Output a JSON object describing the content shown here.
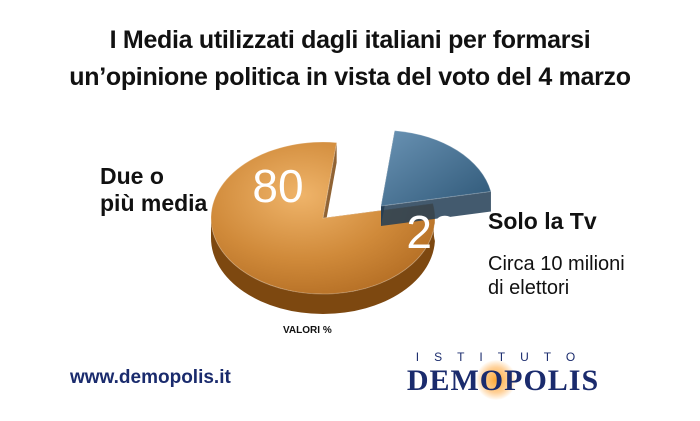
{
  "title_lines": [
    "I Media utilizzati dagli italiani per formarsi",
    "un’opinione politica in vista del voto del 4 marzo"
  ],
  "chart_data": {
    "type": "pie",
    "title": "I Media utilizzati dagli italiani per formarsi un’opinione politica in vista del voto del 4 marzo",
    "units_note": "VALORI %",
    "slices": [
      {
        "label": "Due o più media",
        "value": 80,
        "color": "#d08a3a"
      },
      {
        "label": "Solo la Tv",
        "value": 20,
        "color": "#3d6b8c",
        "exploded": true
      }
    ],
    "annotations": [
      "Circa 10 milioni di elettori"
    ]
  },
  "labels": {
    "big_line1": "Due o",
    "big_line2": "più media",
    "small_main": "Solo la Tv",
    "small_sub1": "Circa 10 milioni",
    "small_sub2": "di elettori"
  },
  "footer": {
    "website": "www.demopolis.it",
    "logo_top": "ISTITUTO",
    "logo_main": "DEMOPOLIS"
  }
}
